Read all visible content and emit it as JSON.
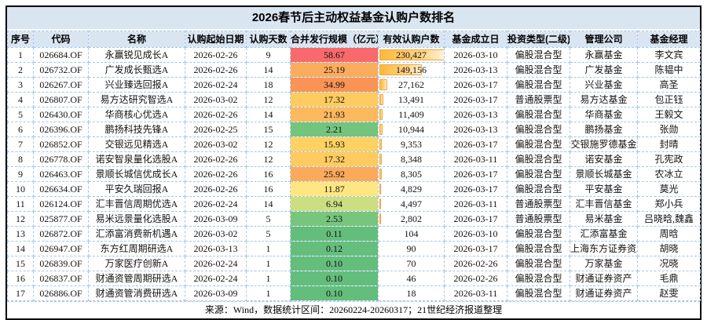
{
  "colors": {
    "header_bg": "#d9e5f1",
    "grid_line": "#a5c6e8",
    "outer_border": "#000000",
    "bar_fill": "#ffb83a",
    "bar_border": "#f2a53c",
    "scale_max_red": "#F8696B",
    "scale_mid_yellow": "#FFEB84",
    "scale_min_green": "#63BE7B"
  },
  "chart_data": {
    "type": "table",
    "title": "2026春节后主动权益基金认购户数排名",
    "source_note": "来源：Wind，数据统计区间：20260224-20260317；21世纪经济报道整理",
    "conditional_formatting": {
      "scale_column": "3-color scale red(max)-yellow(median)-green(min)",
      "holders_column": "orange gradient data bars, max = 230427"
    },
    "columns": [
      {
        "key": "rank",
        "label": "序号"
      },
      {
        "key": "code",
        "label": "代码"
      },
      {
        "key": "name",
        "label": "名称"
      },
      {
        "key": "start_date",
        "label": "认购起始日期"
      },
      {
        "key": "days",
        "label": "认购天数"
      },
      {
        "key": "scale",
        "label": "合并发行规模（亿元）"
      },
      {
        "key": "holders",
        "label": "有效认购户数"
      },
      {
        "key": "est_date",
        "label": "基金成立日"
      },
      {
        "key": "type",
        "label": "投资类型(二级)"
      },
      {
        "key": "company",
        "label": "管理公司"
      },
      {
        "key": "manager",
        "label": "基金经理"
      }
    ],
    "rows": [
      {
        "rank": "1",
        "code": "026684.OF",
        "name": "永赢锐见成长A",
        "start_date": "2026-02-26",
        "days": "9",
        "scale": "58.67",
        "scale_color": "#F8696B",
        "holders": "230,427",
        "holders_value": 230427,
        "bar_pct": 100,
        "est_date": "2026-03-10",
        "type": "偏股混合型",
        "company": "永赢基金",
        "manager": "李文宾"
      },
      {
        "rank": "2",
        "code": "026732.OF",
        "name": "广发成长甄选A",
        "start_date": "2026-02-26",
        "days": "14",
        "scale": "25.19",
        "scale_color": "#FBAC5D",
        "holders": "149,156",
        "holders_value": 149156,
        "bar_pct": 64.7,
        "est_date": "2026-03-13",
        "type": "偏股混合型",
        "company": "广发基金",
        "manager": "陈韫中"
      },
      {
        "rank": "3",
        "code": "026267.OF",
        "name": "兴业臻选回报A",
        "start_date": "2026-02-24",
        "days": "18",
        "scale": "34.99",
        "scale_color": "#FA9356",
        "holders": "27,162",
        "holders_value": 27162,
        "bar_pct": 11.8,
        "est_date": "2026-03-17",
        "type": "偏股混合型",
        "company": "兴业基金",
        "manager": "高圣"
      },
      {
        "rank": "4",
        "code": "026807.OF",
        "name": "易方达研究智选A",
        "start_date": "2026-03-02",
        "days": "12",
        "scale": "17.32",
        "scale_color": "#FDCB5F",
        "holders": "13,491",
        "holders_value": 13491,
        "bar_pct": 5.9,
        "est_date": "2026-03-17",
        "type": "普通股票型",
        "company": "易方达基金",
        "manager": "包正钰"
      },
      {
        "rank": "5",
        "code": "026430.OF",
        "name": "华商核心优选A",
        "start_date": "2026-02-26",
        "days": "14",
        "scale": "21.93",
        "scale_color": "#FCB95D",
        "holders": "11,409",
        "holders_value": 11409,
        "bar_pct": 5.0,
        "est_date": "2026-03-13",
        "type": "偏股混合型",
        "company": "华商基金",
        "manager": "王毅文"
      },
      {
        "rank": "6",
        "code": "026396.OF",
        "name": "鹏扬科技先锋A",
        "start_date": "2026-02-25",
        "days": "15",
        "scale": "2.21",
        "scale_color": "#73C47D",
        "holders": "10,944",
        "holders_value": 10944,
        "bar_pct": 4.7,
        "est_date": "2026-03-13",
        "type": "偏股混合型",
        "company": "鹏扬基金",
        "manager": "张勋"
      },
      {
        "rank": "7",
        "code": "026852.OF",
        "name": "交银远见精选A",
        "start_date": "2026-03-02",
        "days": "12",
        "scale": "15.93",
        "scale_color": "#FDD262",
        "holders": "9,353",
        "holders_value": 9353,
        "bar_pct": 4.1,
        "est_date": "2026-03-17",
        "type": "偏股混合型",
        "company": "交银施罗德基金",
        "manager": "封晴"
      },
      {
        "rank": "8",
        "code": "026778.OF",
        "name": "诺安智泉量化选股A",
        "start_date": "2026-02-26",
        "days": "12",
        "scale": "17.32",
        "scale_color": "#FDCB5F",
        "holders": "8,348",
        "holders_value": 8348,
        "bar_pct": 3.6,
        "est_date": "2026-03-11",
        "type": "偏股混合型",
        "company": "诺安基金",
        "manager": "孔宪政"
      },
      {
        "rank": "9",
        "code": "026463.OF",
        "name": "景顺长城信优成长A",
        "start_date": "2026-02-26",
        "days": "16",
        "scale": "25.92",
        "scale_color": "#FBAA5C",
        "holders": "8,305",
        "holders_value": 8305,
        "bar_pct": 3.6,
        "est_date": "2026-03-17",
        "type": "偏股混合型",
        "company": "景顺长城基金",
        "manager": "农冰立"
      },
      {
        "rank": "10",
        "code": "026634.OF",
        "name": "平安久瑞回报A",
        "start_date": "2026-02-26",
        "days": "16",
        "scale": "11.87",
        "scale_color": "#FEE782",
        "holders": "4,829",
        "holders_value": 4829,
        "bar_pct": 2.1,
        "est_date": "2026-03-17",
        "type": "偏股混合型",
        "company": "平安基金",
        "manager": "莫光"
      },
      {
        "rank": "11",
        "code": "026124.OF",
        "name": "汇丰晋信周期优选A",
        "start_date": "2026-02-24",
        "days": "14",
        "scale": "6.94",
        "scale_color": "#CBDF81",
        "holders": "4,497",
        "holders_value": 4497,
        "bar_pct": 2.0,
        "est_date": "2026-03-11",
        "type": "普通股票型",
        "company": "汇丰晋信基金",
        "manager": "郑小兵"
      },
      {
        "rank": "12",
        "code": "025877.OF",
        "name": "易米远景量化选股A",
        "start_date": "2026-03-09",
        "days": "5",
        "scale": "2.53",
        "scale_color": "#78C57E",
        "holders": "2,802",
        "holders_value": 2802,
        "bar_pct": 1.2,
        "est_date": "2026-03-17",
        "type": "普通股票型",
        "company": "易米基金",
        "manager": "吕晓晗,魏鑫"
      },
      {
        "rank": "13",
        "code": "026872.OF",
        "name": "汇添富消费新机遇A",
        "start_date": "2026-03-02",
        "days": "5",
        "scale": "0.11",
        "scale_color": "#64BE7B",
        "holders": "104",
        "holders_value": 104,
        "bar_pct": 0,
        "est_date": "2026-03-10",
        "type": "偏股混合型",
        "company": "汇添富基金",
        "manager": "周晗"
      },
      {
        "rank": "14",
        "code": "026947.OF",
        "name": "东方红周期研选A",
        "start_date": "2026-03-13",
        "days": "1",
        "scale": "0.12",
        "scale_color": "#65BE7B",
        "holders": "90",
        "holders_value": 90,
        "bar_pct": 0,
        "est_date": "2026-03-17",
        "type": "偏股混合型",
        "company": "上海东方证券资产",
        "manager": "胡晓"
      },
      {
        "rank": "15",
        "code": "026839.OF",
        "name": "万家医疗创新A",
        "start_date": "2026-02-24",
        "days": "1",
        "scale": "0.10",
        "scale_color": "#63BE7B",
        "holders": "70",
        "holders_value": 70,
        "bar_pct": 0,
        "est_date": "2026-02-26",
        "type": "偏股混合型",
        "company": "万家基金",
        "manager": "况晓"
      },
      {
        "rank": "16",
        "code": "026837.OF",
        "name": "财通资管周期研选A",
        "start_date": "2026-02-24",
        "days": "1",
        "scale": "0.10",
        "scale_color": "#63BE7B",
        "holders": "46",
        "holders_value": 46,
        "bar_pct": 0,
        "est_date": "2026-02-26",
        "type": "偏股混合型",
        "company": "财通证券资产",
        "manager": "毛鼎"
      },
      {
        "rank": "17",
        "code": "026886.OF",
        "name": "财通资管消费研选A",
        "start_date": "2026-03-09",
        "days": "1",
        "scale": "0.10",
        "scale_color": "#63BE7B",
        "holders": "18",
        "holders_value": 18,
        "bar_pct": 0,
        "est_date": "2026-03-11",
        "type": "偏股混合型",
        "company": "财通证券资产",
        "manager": "赵雯"
      }
    ]
  }
}
